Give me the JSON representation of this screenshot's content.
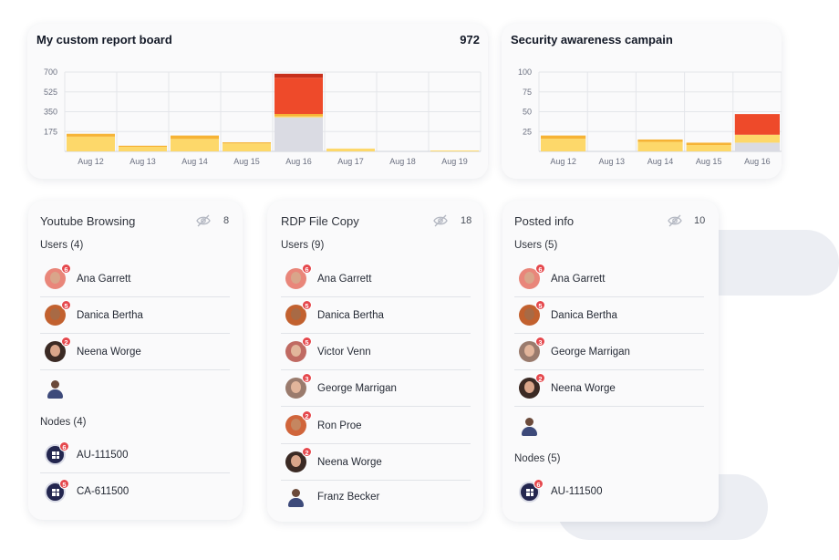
{
  "colors": {
    "bar_low": "#fdd86a",
    "bar_mid": "#f6b335",
    "bar_high": "#ee4a2a",
    "bar_dark": "#c7301c",
    "bar_grey": "#dadbe3",
    "badge": "#e5484d"
  },
  "report_board": {
    "title": "My custom report board",
    "total": "972",
    "chart_data": {
      "type": "bar",
      "title": "My custom report board",
      "categories": [
        "Aug 12",
        "Aug 13",
        "Aug 14",
        "Aug 15",
        "Aug 16",
        "Aug 17",
        "Aug 18",
        "Aug 19"
      ],
      "yticks": [
        175,
        350,
        525,
        700
      ],
      "ylim": [
        0,
        700
      ],
      "series": [
        {
          "name": "grey",
          "values": [
            0,
            0,
            0,
            0,
            300,
            0,
            0,
            0
          ]
        },
        {
          "name": "low",
          "values": [
            130,
            40,
            110,
            70,
            10,
            25,
            0,
            8
          ]
        },
        {
          "name": "mid",
          "values": [
            25,
            10,
            30,
            10,
            20,
            0,
            0,
            0
          ]
        },
        {
          "name": "high",
          "values": [
            0,
            0,
            0,
            0,
            320,
            0,
            0,
            0
          ]
        },
        {
          "name": "dark",
          "values": [
            0,
            0,
            0,
            0,
            35,
            0,
            0,
            0
          ]
        }
      ]
    }
  },
  "security_campaign": {
    "title": "Security awareness campain",
    "chart_data": {
      "type": "bar",
      "title": "Security awareness campain",
      "categories": [
        "Aug 12",
        "Aug 13",
        "Aug 14",
        "Aug 15",
        "Aug 16"
      ],
      "yticks": [
        25,
        50,
        75,
        100
      ],
      "ylim": [
        0,
        100
      ],
      "series": [
        {
          "name": "grey",
          "values": [
            0,
            0,
            0,
            0,
            11
          ]
        },
        {
          "name": "low",
          "values": [
            16,
            0,
            12,
            8,
            10
          ]
        },
        {
          "name": "mid",
          "values": [
            4,
            0,
            3,
            3,
            0
          ]
        },
        {
          "name": "high",
          "values": [
            0,
            0,
            0,
            0,
            26
          ]
        }
      ]
    }
  },
  "panels": [
    {
      "title": "Youtube Browsing",
      "count": "8",
      "users_label": "Users (4)",
      "users": [
        {
          "name": "Ana Garrett",
          "badge": "6",
          "skin": "#d9a58a",
          "bg": "#e9867a"
        },
        {
          "name": "Danica Bertha",
          "badge": "5",
          "skin": "#a86a45",
          "bg": "#c2612f"
        },
        {
          "name": "Neena Worge",
          "badge": "2",
          "skin": "#d9a58a",
          "bg": "#3b2a24"
        },
        {
          "name": "",
          "badge": "",
          "skin": "",
          "bg": ""
        }
      ],
      "nodes_label": "Nodes (4)",
      "nodes": [
        {
          "name": "AU-111500",
          "badge": "6"
        },
        {
          "name": "CA-611500",
          "badge": "5"
        }
      ]
    },
    {
      "title": "RDP File Copy",
      "count": "18",
      "users_label": "Users (9)",
      "users": [
        {
          "name": "Ana Garrett",
          "badge": "6",
          "skin": "#d9a58a",
          "bg": "#e9867a"
        },
        {
          "name": "Danica Bertha",
          "badge": "5",
          "skin": "#a86a45",
          "bg": "#c2612f"
        },
        {
          "name": "Victor Venn",
          "badge": "5",
          "skin": "#e2b59b",
          "bg": "#c06a62"
        },
        {
          "name": "George Marrigan",
          "badge": "3",
          "skin": "#e2b59b",
          "bg": "#9a7b6d"
        },
        {
          "name": "Ron Proe",
          "badge": "2",
          "skin": "#c58660",
          "bg": "#d0653b"
        },
        {
          "name": "Neena Worge",
          "badge": "2",
          "skin": "#d9a58a",
          "bg": "#3b2a24"
        },
        {
          "name": "Franz Becker",
          "badge": "",
          "skin": "",
          "bg": ""
        }
      ]
    },
    {
      "title": "Posted info",
      "count": "10",
      "users_label": "Users (5)",
      "users": [
        {
          "name": "Ana Garrett",
          "badge": "6",
          "skin": "#d9a58a",
          "bg": "#e9867a"
        },
        {
          "name": "Danica Bertha",
          "badge": "5",
          "skin": "#a86a45",
          "bg": "#c2612f"
        },
        {
          "name": "George Marrigan",
          "badge": "3",
          "skin": "#e2b59b",
          "bg": "#9a7b6d"
        },
        {
          "name": "Neena Worge",
          "badge": "2",
          "skin": "#d9a58a",
          "bg": "#3b2a24"
        },
        {
          "name": "",
          "badge": "",
          "skin": "",
          "bg": ""
        }
      ],
      "nodes_label": "Nodes (5)",
      "nodes": [
        {
          "name": "AU-111500",
          "badge": "6"
        }
      ]
    }
  ]
}
